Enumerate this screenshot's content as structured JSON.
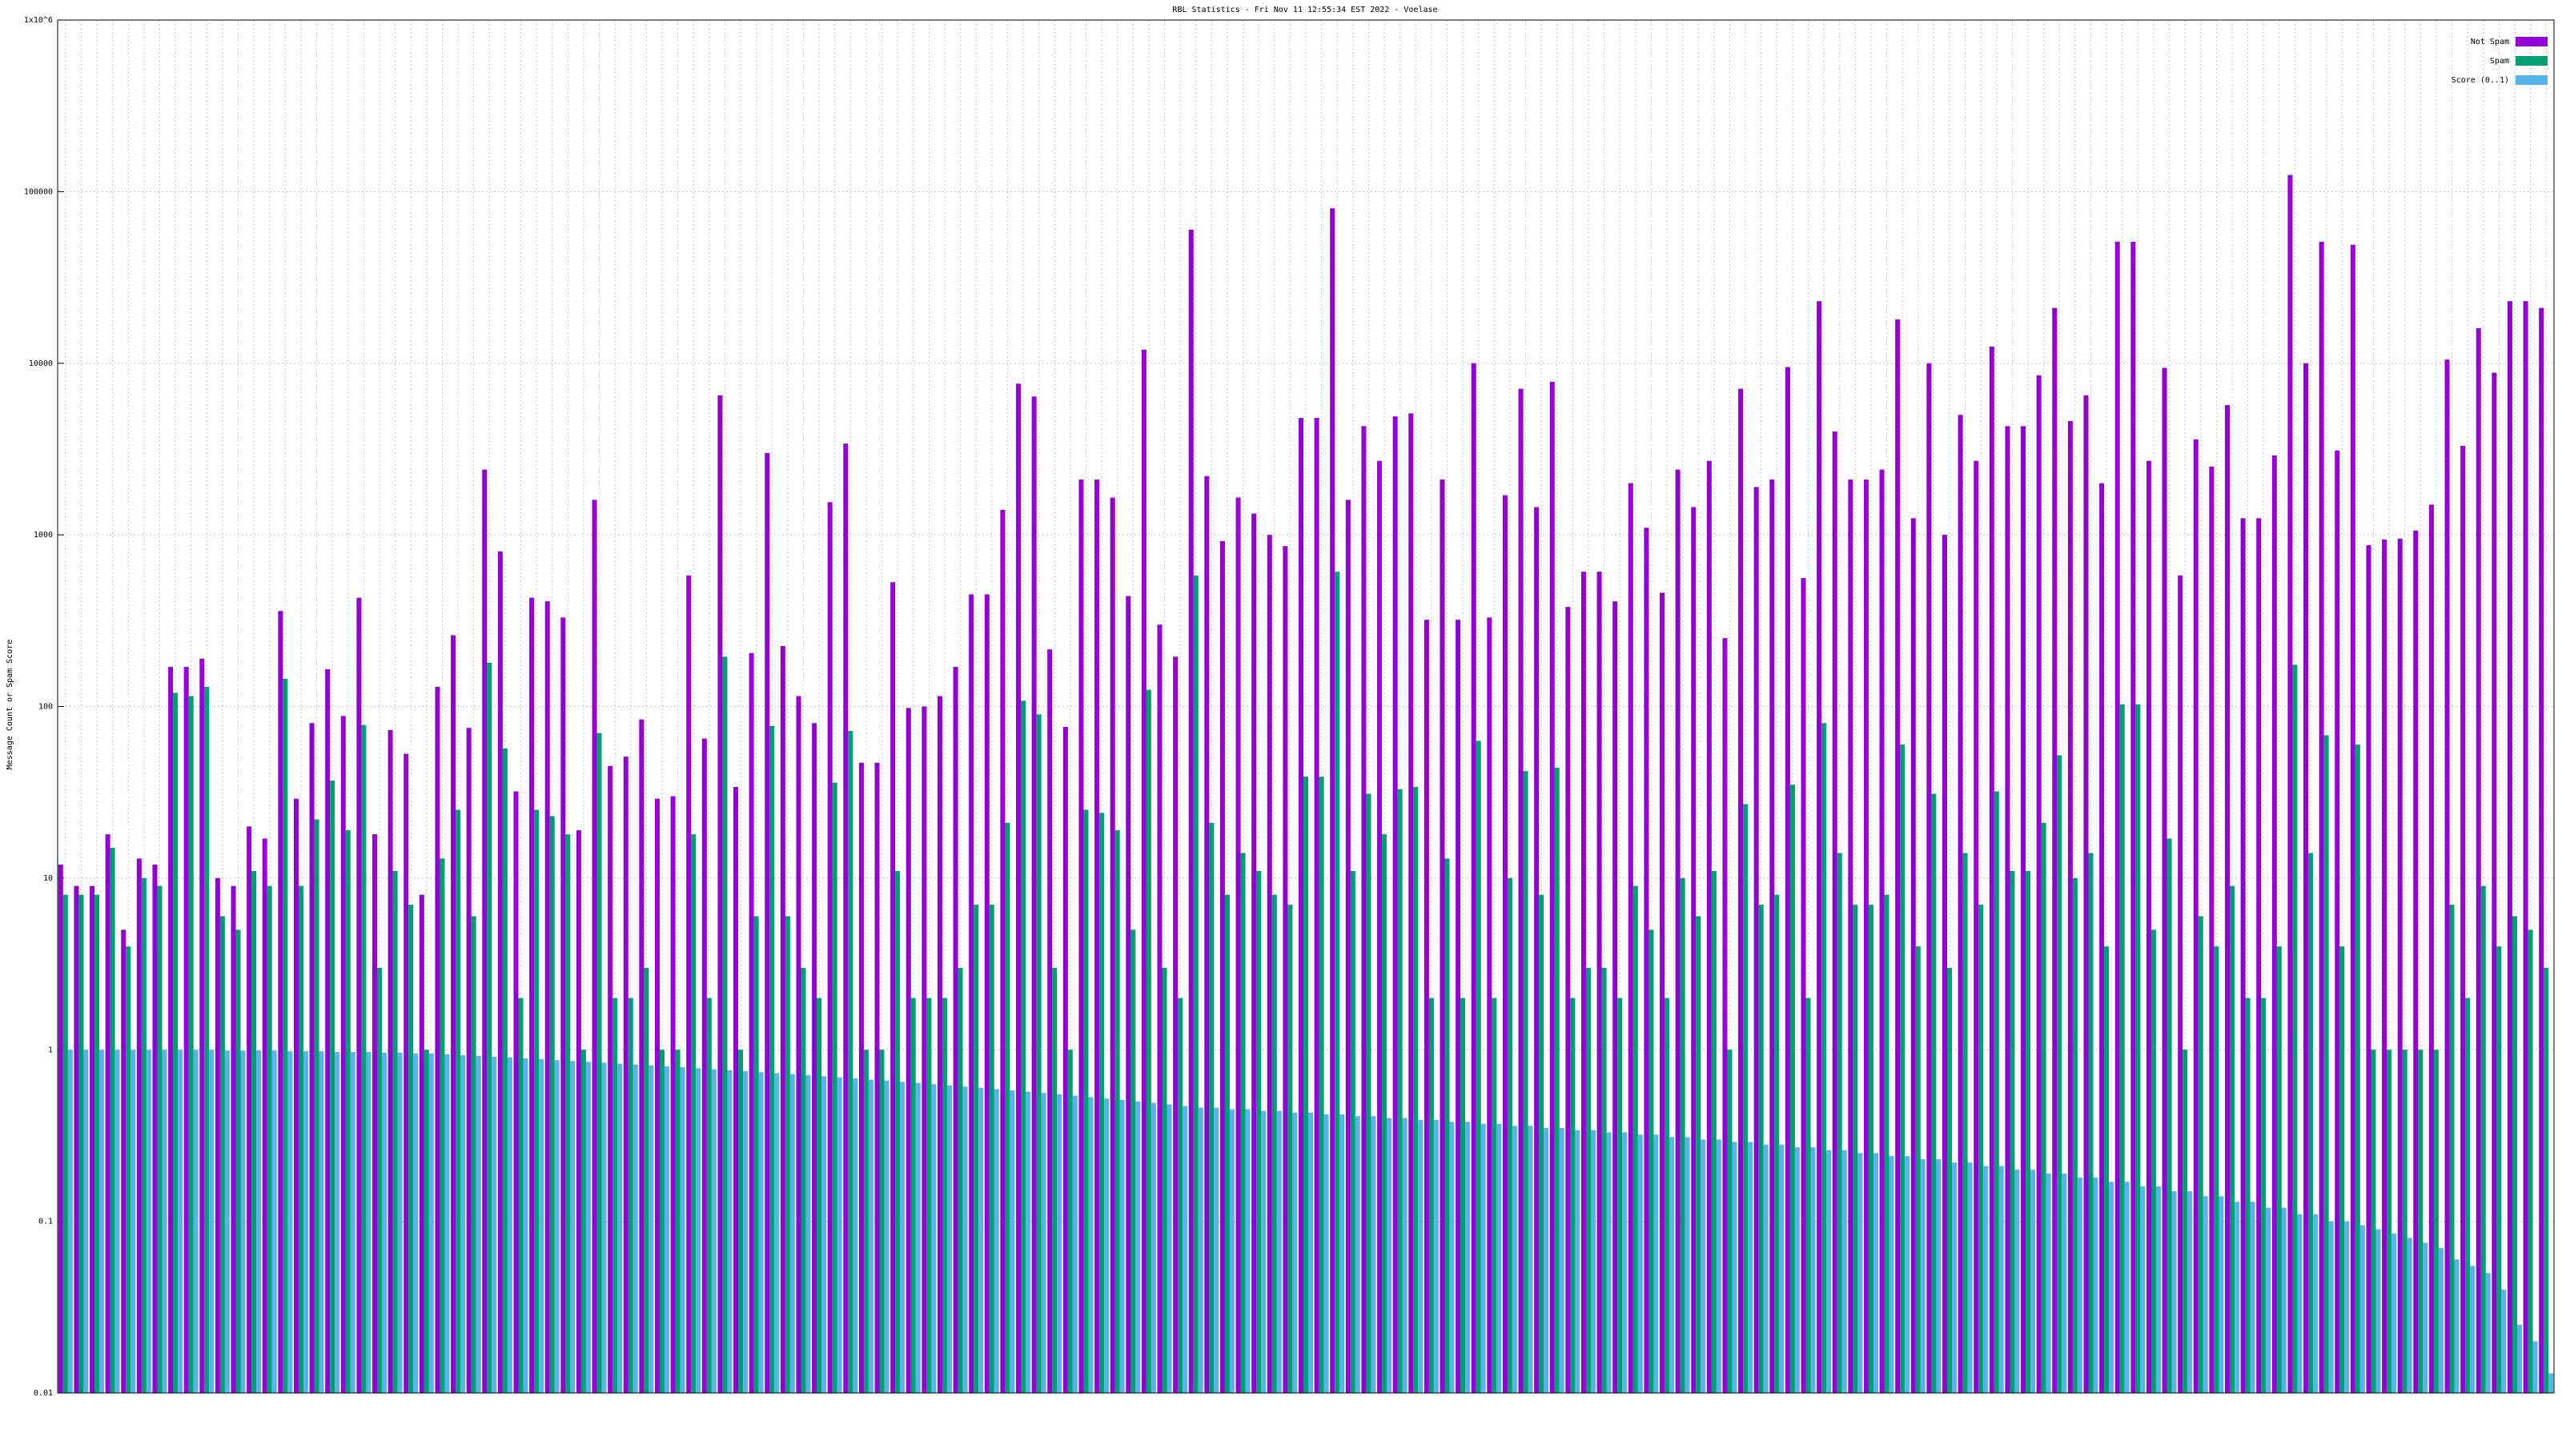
{
  "chart_data": {
    "type": "bar",
    "title": "RBL Statistics - Fri Nov 11 12:55:34 EST 2022 - Voelase",
    "y_label": "Message Count or Spam Score",
    "log_y": true,
    "grid": true,
    "legend": "top-right",
    "ylim": [
      0.01,
      1000000
    ],
    "yticks": [
      0.01,
      0.1,
      1,
      10,
      100,
      1000,
      10000,
      100000,
      {
        "value": 1000000,
        "label": "1x10^6"
      }
    ],
    "categories": [
      null,
      null,
      null,
      null,
      null,
      null,
      null,
      null,
      null,
      null,
      null,
      null,
      null,
      null,
      null,
      null,
      null,
      null,
      null,
      null,
      null,
      null,
      null,
      null,
      null,
      null,
      null,
      null,
      null,
      null,
      null,
      null,
      null,
      null,
      null,
      null,
      null,
      null,
      null,
      null,
      null,
      null,
      null,
      null,
      null,
      null,
      null,
      null,
      null,
      null,
      null,
      null,
      null,
      null,
      null,
      null,
      null,
      null,
      null,
      null,
      null,
      null,
      null,
      null,
      null,
      null,
      null,
      null,
      null,
      null,
      null,
      null,
      null,
      null,
      null,
      null,
      null,
      null,
      null,
      null,
      null,
      null,
      null,
      null,
      null,
      null,
      null,
      null,
      null,
      null,
      null,
      null,
      null,
      null,
      null,
      null,
      null,
      null,
      null,
      null,
      null,
      null,
      null,
      null,
      null,
      null,
      null,
      null,
      null,
      null,
      null,
      null,
      null,
      null,
      null,
      null,
      null,
      null,
      null,
      null,
      null,
      null,
      null,
      null,
      null,
      null,
      null,
      null,
      null,
      null,
      null,
      null,
      null,
      null,
      null,
      null,
      null,
      null,
      null,
      null,
      null,
      null,
      null,
      null,
      null,
      null,
      null,
      null,
      null,
      null,
      null,
      null,
      null,
      null,
      null,
      null,
      null,
      null,
      null
    ],
    "series": [
      {
        "name": "Not Spam",
        "color": "#9400d3",
        "values": [
          12,
          9,
          9,
          18,
          5,
          13,
          12,
          170,
          170,
          190,
          10,
          9,
          20,
          17,
          360,
          29,
          80,
          165,
          88,
          430,
          18,
          73,
          53,
          8,
          130,
          260,
          75,
          2400,
          800,
          32,
          430,
          410,
          330,
          19,
          1600,
          45,
          51,
          84,
          29,
          30,
          580,
          65,
          6500,
          34,
          205,
          3000,
          225,
          115,
          80,
          1550,
          3400,
          47,
          47,
          530,
          98,
          100,
          115,
          170,
          450,
          450,
          1400,
          7600,
          6400,
          215,
          76,
          2100,
          2100,
          1650,
          440,
          12000,
          300,
          195,
          60000,
          2200,
          920,
          1650,
          1330,
          1000,
          860,
          4800,
          4800,
          80000,
          1600,
          4300,
          2700,
          4900,
          5100,
          320,
          2100,
          320,
          10000,
          330,
          1700,
          7100,
          1450,
          7800,
          380,
          610,
          610,
          410,
          2000,
          1100,
          460,
          2400,
          1450,
          2700,
          250,
          7100,
          1900,
          2100,
          9500,
          560,
          23000,
          4000,
          2100,
          2100,
          2400,
          18000,
          1250,
          10000,
          1000,
          5000,
          2700,
          12500,
          4300,
          4300,
          8500,
          21000,
          4600,
          6500,
          2000,
          51000,
          51000,
          2700,
          9400,
          580,
          3600,
          2500,
          5700,
          1250,
          1250,
          2900,
          125000,
          10000,
          51000,
          3100,
          49000,
          870,
          940,
          950,
          1060,
          1500,
          10500,
          3300,
          16000,
          8800,
          23000,
          23000,
          21000
        ]
      },
      {
        "name": "Spam",
        "color": "#009e73",
        "values": [
          8,
          8,
          8,
          15,
          4,
          10,
          9,
          120,
          115,
          130,
          6,
          5,
          11,
          9,
          145,
          9,
          22,
          37,
          19,
          78,
          3,
          11,
          7,
          1,
          13,
          25,
          6,
          180,
          57,
          2,
          25,
          23,
          18,
          1,
          70,
          2,
          2,
          3,
          1,
          1,
          18,
          2,
          195,
          1,
          6,
          77,
          6,
          3,
          2,
          36,
          72,
          1,
          1,
          11,
          2,
          2,
          2,
          3,
          7,
          7,
          21,
          108,
          90,
          3,
          1,
          25,
          24,
          19,
          5,
          125,
          3,
          2,
          580,
          21,
          8,
          14,
          11,
          8,
          7,
          39,
          39,
          610,
          11,
          31,
          18,
          33,
          34,
          2,
          13,
          2,
          63,
          2,
          10,
          42,
          8,
          44,
          2,
          3,
          3,
          2,
          9,
          5,
          2,
          10,
          6,
          11,
          1,
          27,
          7,
          8,
          35,
          2,
          80,
          14,
          7,
          7,
          8,
          60,
          4,
          31,
          3,
          14,
          7,
          32,
          11,
          11,
          21,
          52,
          10,
          14,
          4,
          103,
          103,
          5,
          17,
          1,
          6,
          4,
          9,
          2,
          2,
          4,
          175,
          14,
          68,
          4,
          60,
          1,
          1,
          1,
          1,
          1,
          7,
          2,
          9,
          4,
          6,
          5,
          3
        ]
      },
      {
        "name": "Score (0..1)",
        "color": "#56b4e9",
        "values": [
          1,
          1,
          1,
          1,
          1,
          1,
          1,
          1,
          1,
          1,
          0.99,
          0.99,
          0.99,
          0.99,
          0.98,
          0.98,
          0.98,
          0.97,
          0.97,
          0.97,
          0.96,
          0.96,
          0.95,
          0.95,
          0.94,
          0.93,
          0.92,
          0.91,
          0.9,
          0.89,
          0.88,
          0.87,
          0.86,
          0.85,
          0.84,
          0.83,
          0.82,
          0.81,
          0.8,
          0.79,
          0.78,
          0.77,
          0.76,
          0.75,
          0.74,
          0.73,
          0.72,
          0.71,
          0.7,
          0.69,
          0.68,
          0.67,
          0.66,
          0.65,
          0.64,
          0.63,
          0.62,
          0.61,
          0.6,
          0.59,
          0.58,
          0.57,
          0.56,
          0.55,
          0.54,
          0.53,
          0.52,
          0.51,
          0.5,
          0.49,
          0.48,
          0.47,
          0.46,
          0.46,
          0.45,
          0.45,
          0.44,
          0.44,
          0.43,
          0.43,
          0.42,
          0.42,
          0.41,
          0.41,
          0.4,
          0.4,
          0.39,
          0.39,
          0.38,
          0.38,
          0.37,
          0.37,
          0.36,
          0.36,
          0.35,
          0.35,
          0.34,
          0.34,
          0.33,
          0.33,
          0.32,
          0.32,
          0.31,
          0.31,
          0.3,
          0.3,
          0.29,
          0.29,
          0.28,
          0.28,
          0.27,
          0.27,
          0.26,
          0.26,
          0.25,
          0.25,
          0.24,
          0.24,
          0.23,
          0.23,
          0.22,
          0.22,
          0.21,
          0.21,
          0.2,
          0.2,
          0.19,
          0.19,
          0.18,
          0.18,
          0.17,
          0.17,
          0.16,
          0.16,
          0.15,
          0.15,
          0.14,
          0.14,
          0.13,
          0.13,
          0.12,
          0.12,
          0.11,
          0.11,
          0.1,
          0.1,
          0.095,
          0.09,
          0.085,
          0.08,
          0.075,
          0.07,
          0.06,
          0.055,
          0.05,
          0.04,
          0.025,
          0.02,
          0.013
        ]
      }
    ]
  }
}
